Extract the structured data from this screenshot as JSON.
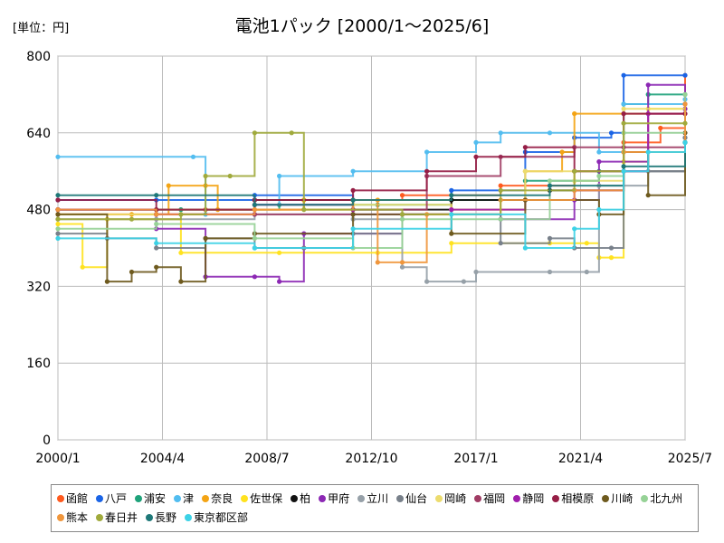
{
  "unit_label": "[単位：円]",
  "chart_data": {
    "type": "line",
    "title": "電池1パック [2000/1～2025/6]",
    "xlabel": "",
    "ylabel": "",
    "ylim": [
      0,
      800
    ],
    "yticks": [
      0,
      160,
      320,
      480,
      640,
      800
    ],
    "xlim": [
      2000.0,
      2025.5
    ],
    "xticks": [
      {
        "label": "2000/1",
        "value": 2000.0
      },
      {
        "label": "2004/4",
        "value": 2004.25
      },
      {
        "label": "2008/7",
        "value": 2008.5
      },
      {
        "label": "2012/10",
        "value": 2012.75
      },
      {
        "label": "2017/1",
        "value": 2017.0
      },
      {
        "label": "2021/4",
        "value": 2021.25
      },
      {
        "label": "2025/7",
        "value": 2025.5
      }
    ],
    "grid": true,
    "legend_position": "bottom",
    "series": [
      {
        "name": "函館",
        "color": "#ff5a1e",
        "points": [
          [
            2000,
            470
          ],
          [
            2004,
            470
          ],
          [
            2006,
            480
          ],
          [
            2010,
            500
          ],
          [
            2014,
            510
          ],
          [
            2018,
            530
          ],
          [
            2021,
            560
          ],
          [
            2023,
            620
          ],
          [
            2024.5,
            650
          ],
          [
            2025.5,
            760
          ]
        ]
      },
      {
        "name": "八戸",
        "color": "#1a64e6",
        "points": [
          [
            2000,
            500
          ],
          [
            2004,
            500
          ],
          [
            2008,
            510
          ],
          [
            2012,
            500
          ],
          [
            2016,
            520
          ],
          [
            2019,
            600
          ],
          [
            2021,
            630
          ],
          [
            2022.5,
            640
          ],
          [
            2023,
            760
          ],
          [
            2025.5,
            760
          ]
        ]
      },
      {
        "name": "浦安",
        "color": "#1ea27a",
        "points": [
          [
            2000,
            480
          ],
          [
            2005,
            480
          ],
          [
            2009,
            490
          ],
          [
            2013,
            490
          ],
          [
            2016,
            500
          ],
          [
            2019,
            540
          ],
          [
            2022,
            560
          ],
          [
            2023,
            700
          ],
          [
            2024,
            720
          ],
          [
            2025.5,
            720
          ]
        ]
      },
      {
        "name": "津",
        "color": "#52bdf0",
        "points": [
          [
            2000,
            590
          ],
          [
            2005.5,
            590
          ],
          [
            2006,
            470
          ],
          [
            2008,
            490
          ],
          [
            2009,
            550
          ],
          [
            2012,
            560
          ],
          [
            2015,
            600
          ],
          [
            2017,
            620
          ],
          [
            2018,
            640
          ],
          [
            2020,
            640
          ],
          [
            2022,
            600
          ],
          [
            2023,
            700
          ],
          [
            2025.5,
            710
          ]
        ]
      },
      {
        "name": "奈良",
        "color": "#f4a414",
        "points": [
          [
            2000,
            470
          ],
          [
            2003,
            470
          ],
          [
            2004.5,
            530
          ],
          [
            2006,
            530
          ],
          [
            2006.5,
            480
          ],
          [
            2010,
            500
          ],
          [
            2013,
            500
          ],
          [
            2016,
            480
          ],
          [
            2019,
            560
          ],
          [
            2020.5,
            600
          ],
          [
            2021,
            680
          ],
          [
            2023,
            680
          ],
          [
            2025.5,
            690
          ]
        ]
      },
      {
        "name": "佐世保",
        "color": "#ffe21e",
        "points": [
          [
            2000,
            450
          ],
          [
            2001,
            360
          ],
          [
            2002,
            460
          ],
          [
            2005,
            390
          ],
          [
            2009,
            390
          ],
          [
            2013,
            390
          ],
          [
            2016,
            410
          ],
          [
            2020,
            410
          ],
          [
            2021.5,
            410
          ],
          [
            2022,
            380
          ],
          [
            2022.5,
            380
          ],
          [
            2023,
            580
          ],
          [
            2024,
            690
          ],
          [
            2025.5,
            690
          ]
        ]
      },
      {
        "name": "柏",
        "color": "#111111",
        "points": [
          [
            2000,
            480
          ],
          [
            2004,
            480
          ],
          [
            2008,
            500
          ],
          [
            2012,
            480
          ],
          [
            2016,
            500
          ],
          [
            2020,
            520
          ],
          [
            2023,
            560
          ],
          [
            2025.5,
            620
          ]
        ]
      },
      {
        "name": "甲府",
        "color": "#8c28b4",
        "points": [
          [
            2000,
            480
          ],
          [
            2004,
            440
          ],
          [
            2006,
            340
          ],
          [
            2008,
            340
          ],
          [
            2009,
            330
          ],
          [
            2010,
            430
          ],
          [
            2014,
            470
          ],
          [
            2018,
            460
          ],
          [
            2021,
            500
          ],
          [
            2022,
            580
          ],
          [
            2024,
            740
          ],
          [
            2025.5,
            690
          ]
        ]
      },
      {
        "name": "立川",
        "color": "#96a0a8",
        "points": [
          [
            2000,
            460
          ],
          [
            2004,
            460
          ],
          [
            2008,
            470
          ],
          [
            2012,
            460
          ],
          [
            2014,
            360
          ],
          [
            2015,
            330
          ],
          [
            2016.5,
            330
          ],
          [
            2017,
            350
          ],
          [
            2020,
            350
          ],
          [
            2021.5,
            350
          ],
          [
            2022,
            530
          ],
          [
            2024,
            560
          ],
          [
            2025.5,
            630
          ]
        ]
      },
      {
        "name": "仙台",
        "color": "#78808a",
        "points": [
          [
            2000,
            430
          ],
          [
            2002,
            420
          ],
          [
            2004,
            400
          ],
          [
            2006,
            420
          ],
          [
            2008,
            400
          ],
          [
            2010,
            400
          ],
          [
            2012,
            430
          ],
          [
            2014,
            470
          ],
          [
            2018,
            410
          ],
          [
            2020,
            420
          ],
          [
            2021,
            400
          ],
          [
            2022.5,
            400
          ],
          [
            2023,
            560
          ],
          [
            2025.5,
            630
          ]
        ]
      },
      {
        "name": "岡崎",
        "color": "#ecdc6e",
        "points": [
          [
            2000,
            470
          ],
          [
            2004,
            480
          ],
          [
            2008,
            480
          ],
          [
            2012,
            490
          ],
          [
            2016,
            480
          ],
          [
            2019,
            560
          ],
          [
            2021,
            540
          ],
          [
            2023,
            690
          ],
          [
            2025.5,
            700
          ]
        ]
      },
      {
        "name": "福岡",
        "color": "#a03c64",
        "points": [
          [
            2000,
            480
          ],
          [
            2004,
            470
          ],
          [
            2008,
            470
          ],
          [
            2012,
            480
          ],
          [
            2015,
            550
          ],
          [
            2018,
            590
          ],
          [
            2021,
            610
          ],
          [
            2023,
            610
          ],
          [
            2025.5,
            620
          ]
        ]
      },
      {
        "name": "静岡",
        "color": "#a01eac",
        "points": [
          [
            2000,
            480
          ],
          [
            2004,
            470
          ],
          [
            2008,
            490
          ],
          [
            2012,
            470
          ],
          [
            2016,
            480
          ],
          [
            2019,
            500
          ],
          [
            2021,
            520
          ],
          [
            2023,
            560
          ],
          [
            2024,
            680
          ],
          [
            2025.5,
            700
          ]
        ]
      },
      {
        "name": "相模原",
        "color": "#961e46",
        "points": [
          [
            2000,
            500
          ],
          [
            2004,
            480
          ],
          [
            2008,
            500
          ],
          [
            2012,
            520
          ],
          [
            2015,
            560
          ],
          [
            2017,
            590
          ],
          [
            2019,
            610
          ],
          [
            2021,
            560
          ],
          [
            2023,
            680
          ],
          [
            2025.5,
            680
          ]
        ]
      },
      {
        "name": "川崎",
        "color": "#6e5a1e",
        "points": [
          [
            2000,
            470
          ],
          [
            2002,
            330
          ],
          [
            2003,
            350
          ],
          [
            2004,
            360
          ],
          [
            2005,
            330
          ],
          [
            2006,
            420
          ],
          [
            2008,
            430
          ],
          [
            2012,
            470
          ],
          [
            2016,
            430
          ],
          [
            2019,
            500
          ],
          [
            2022,
            470
          ],
          [
            2023,
            600
          ],
          [
            2024,
            510
          ],
          [
            2025.5,
            640
          ]
        ]
      },
      {
        "name": "北九州",
        "color": "#96d296",
        "points": [
          [
            2000,
            440
          ],
          [
            2004,
            450
          ],
          [
            2008,
            420
          ],
          [
            2012,
            400
          ],
          [
            2014,
            460
          ],
          [
            2018,
            460
          ],
          [
            2020,
            540
          ],
          [
            2022,
            550
          ],
          [
            2023,
            640
          ],
          [
            2025.5,
            720
          ]
        ]
      },
      {
        "name": "熊本",
        "color": "#f0963c",
        "points": [
          [
            2000,
            480
          ],
          [
            2004,
            470
          ],
          [
            2008,
            480
          ],
          [
            2012,
            500
          ],
          [
            2013,
            370
          ],
          [
            2014,
            370
          ],
          [
            2015,
            470
          ],
          [
            2018,
            500
          ],
          [
            2021,
            520
          ],
          [
            2023,
            600
          ],
          [
            2025.5,
            700
          ]
        ]
      },
      {
        "name": "春日井",
        "color": "#a0aa3c",
        "points": [
          [
            2000,
            460
          ],
          [
            2003,
            460
          ],
          [
            2005,
            470
          ],
          [
            2006,
            550
          ],
          [
            2007,
            550
          ],
          [
            2008,
            640
          ],
          [
            2009.5,
            640
          ],
          [
            2010,
            480
          ],
          [
            2014,
            470
          ],
          [
            2018,
            520
          ],
          [
            2021,
            560
          ],
          [
            2023,
            660
          ],
          [
            2025.5,
            660
          ]
        ]
      },
      {
        "name": "長野",
        "color": "#1e7878",
        "points": [
          [
            2000,
            510
          ],
          [
            2004,
            510
          ],
          [
            2008,
            490
          ],
          [
            2012,
            500
          ],
          [
            2016,
            510
          ],
          [
            2020,
            530
          ],
          [
            2023,
            570
          ],
          [
            2025.5,
            620
          ]
        ]
      },
      {
        "name": "東京都区部",
        "color": "#3cd2e6",
        "points": [
          [
            2000,
            420
          ],
          [
            2004,
            410
          ],
          [
            2008,
            400
          ],
          [
            2012,
            440
          ],
          [
            2016,
            470
          ],
          [
            2019,
            400
          ],
          [
            2021,
            440
          ],
          [
            2022,
            480
          ],
          [
            2023,
            560
          ],
          [
            2024,
            600
          ],
          [
            2025.5,
            620
          ]
        ]
      }
    ]
  }
}
